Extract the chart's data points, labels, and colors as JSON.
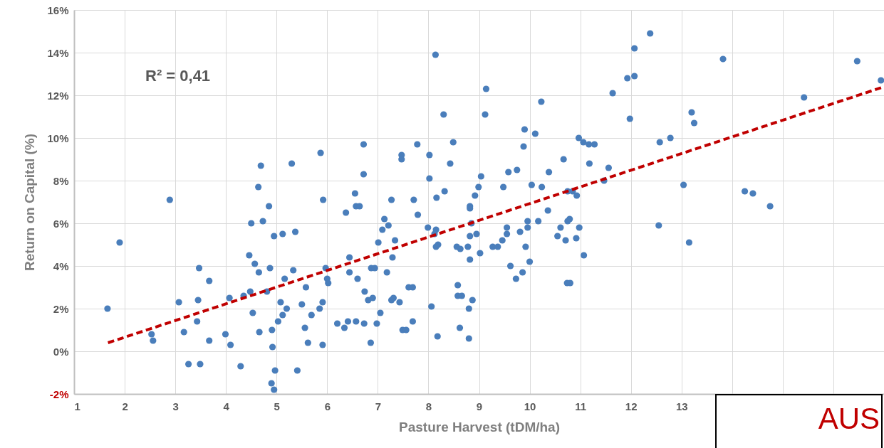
{
  "chart_data": {
    "type": "scatter",
    "xlabel": "Pasture Harvest (tDM/ha)",
    "ylabel": "Return on Capital (%)",
    "annotations": [
      "R² = 0,41",
      "AUS"
    ],
    "xlim": [
      1,
      17
    ],
    "xticks": [
      1,
      2,
      3,
      4,
      5,
      6,
      7,
      8,
      9,
      10,
      11,
      12,
      13,
      {
        "value": 14,
        "label": null
      },
      {
        "value": 15,
        "label": null
      },
      {
        "value": 16,
        "label": null
      },
      {
        "value": 17,
        "label": null
      }
    ],
    "ylim": [
      -2,
      16
    ],
    "yticks": [
      {
        "value": -2,
        "label": "-2%"
      },
      {
        "value": 0,
        "label": "0%"
      },
      {
        "value": 2,
        "label": "2%"
      },
      {
        "value": 4,
        "label": "4%"
      },
      {
        "value": 6,
        "label": "6%"
      },
      {
        "value": 8,
        "label": "8%"
      },
      {
        "value": 10,
        "label": "10%"
      },
      {
        "value": 12,
        "label": "12%"
      },
      {
        "value": 14,
        "label": "14%"
      },
      {
        "value": 16,
        "label": "16%"
      }
    ],
    "grid": true,
    "series": [
      {
        "color": "#4a7ebb",
        "marker": "circle",
        "x": [
          1.66,
          1.9,
          2.53,
          2.56,
          2.89,
          3.07,
          3.17,
          3.26,
          3.45,
          3.43,
          3.47,
          3.49,
          3.67,
          3.67,
          3.99,
          4.07,
          4.09,
          4.29,
          4.35,
          4.46,
          4.5,
          4.48,
          4.53,
          4.57,
          4.65,
          4.66,
          4.73,
          4.85,
          4.87,
          4.81,
          4.91,
          4.92,
          4.9,
          4.95,
          4.97,
          4.95,
          5.12,
          5.16,
          5.08,
          5.2,
          5.12,
          5.03,
          5.37,
          5.33,
          5.41,
          5.58,
          5.5,
          5.56,
          5.62,
          5.69,
          5.85,
          5.91,
          5.91,
          5.92,
          5.97,
          6.0,
          6.02,
          6.37,
          6.44,
          6.44,
          6.2,
          6.34,
          6.41,
          4.69,
          5.3,
          5.87,
          4.64,
          8.14,
          9.14,
          9.12,
          8.3,
          8.49,
          7.78,
          6.72,
          10.23,
          9.9,
          10.11,
          9.88,
          10.97,
          11.06,
          11.17,
          11.28,
          11.64,
          11.56,
          11.47,
          11.18,
          10.67,
          10.38,
          10.24,
          10.04,
          10.93,
          10.75,
          10.85,
          9.75,
          9.58,
          9.48,
          9.04,
          8.99,
          8.92,
          8.43,
          8.32,
          8.16,
          8.02,
          8.02,
          7.47,
          7.47,
          7.27,
          7.71,
          6.72,
          6.55,
          6.57,
          6.64,
          8.82,
          12.38,
          12.07,
          12.07,
          11.93,
          13.82,
          16.47,
          16.94,
          15.42,
          11.98,
          13.2,
          13.25,
          12.57,
          12.78,
          13.04,
          14.25,
          14.41,
          14.75,
          12.55,
          13.15,
          7.79,
          7.13,
          7.21,
          7.09,
          7.01,
          7.34,
          7.29,
          6.6,
          6.87,
          6.94,
          7.18,
          6.74,
          6.81,
          6.9,
          7.27,
          7.31,
          7.43,
          7.05,
          6.57,
          6.73,
          6.98,
          6.86,
          7.49,
          7.56,
          7.69,
          7.61,
          7.69,
          8.06,
          8.18,
          8.62,
          8.8,
          8.8,
          8.87,
          8.58,
          8.58,
          8.66,
          7.99,
          8.15,
          8.12,
          8.19,
          8.15,
          8.56,
          8.63,
          8.78,
          8.82,
          8.82,
          8.95,
          8.85,
          8.82,
          9.02,
          9.27,
          9.37,
          9.46,
          9.55,
          9.55,
          9.62,
          9.73,
          9.86,
          9.81,
          9.92,
          10.0,
          9.96,
          9.96,
          10.17,
          10.36,
          10.55,
          10.61,
          10.71,
          10.75,
          10.79,
          10.74,
          10.8,
          10.92,
          10.98,
          11.07
        ],
        "values": [
          2.0,
          5.1,
          0.8,
          0.5,
          7.1,
          2.3,
          0.9,
          -0.6,
          2.4,
          1.4,
          3.9,
          -0.6,
          3.3,
          0.5,
          0.8,
          2.5,
          0.3,
          -0.7,
          2.6,
          4.5,
          6.0,
          2.8,
          1.8,
          4.1,
          3.7,
          0.9,
          6.1,
          6.8,
          3.9,
          2.8,
          1.0,
          0.2,
          -1.5,
          -1.8,
          -0.9,
          5.4,
          5.5,
          3.4,
          2.3,
          2.0,
          1.7,
          1.4,
          5.6,
          3.8,
          -0.9,
          3.0,
          2.2,
          1.1,
          0.4,
          1.7,
          2.0,
          2.3,
          0.3,
          7.1,
          3.9,
          3.4,
          3.2,
          6.5,
          4.4,
          3.7,
          1.3,
          1.1,
          1.4,
          8.7,
          8.8,
          9.3,
          7.7,
          13.9,
          12.3,
          11.1,
          11.1,
          9.8,
          9.7,
          9.7,
          11.7,
          10.4,
          10.2,
          9.6,
          10.0,
          9.8,
          9.7,
          9.7,
          12.1,
          8.6,
          8.0,
          8.8,
          9.0,
          8.4,
          7.7,
          7.8,
          7.3,
          7.5,
          7.5,
          8.5,
          8.4,
          7.7,
          8.2,
          7.7,
          7.3,
          8.8,
          7.5,
          7.2,
          9.2,
          8.1,
          9.2,
          9.0,
          7.1,
          7.1,
          8.3,
          7.4,
          6.8,
          6.8,
          6.8,
          14.9,
          14.2,
          12.9,
          12.8,
          13.7,
          13.6,
          12.7,
          11.9,
          10.9,
          11.2,
          10.7,
          9.8,
          10.0,
          7.8,
          7.5,
          7.4,
          6.8,
          5.9,
          5.1,
          6.4,
          6.2,
          5.9,
          5.7,
          5.1,
          5.2,
          4.4,
          3.4,
          3.9,
          3.9,
          3.7,
          2.8,
          2.4,
          2.5,
          2.4,
          2.5,
          2.3,
          1.8,
          1.4,
          1.3,
          1.3,
          0.4,
          1.0,
          1.0,
          1.4,
          3.0,
          3.0,
          2.1,
          0.7,
          1.1,
          0.6,
          2.0,
          2.4,
          3.1,
          2.6,
          2.6,
          5.8,
          5.7,
          5.5,
          5.0,
          4.9,
          4.9,
          4.8,
          4.9,
          4.3,
          5.4,
          5.5,
          6.0,
          6.7,
          4.6,
          4.9,
          4.9,
          5.2,
          5.5,
          5.8,
          4.0,
          3.4,
          3.7,
          5.6,
          4.9,
          4.2,
          5.8,
          6.1,
          6.1,
          6.6,
          5.4,
          5.8,
          5.2,
          6.1,
          6.2,
          3.2,
          3.2,
          5.3,
          5.8,
          4.5
        ]
      },
      {
        "type": "line",
        "color": "#c00000",
        "line_style": "dashed",
        "x": [
          1.67,
          17
        ],
        "values": [
          0.4,
          12.4
        ]
      }
    ]
  }
}
